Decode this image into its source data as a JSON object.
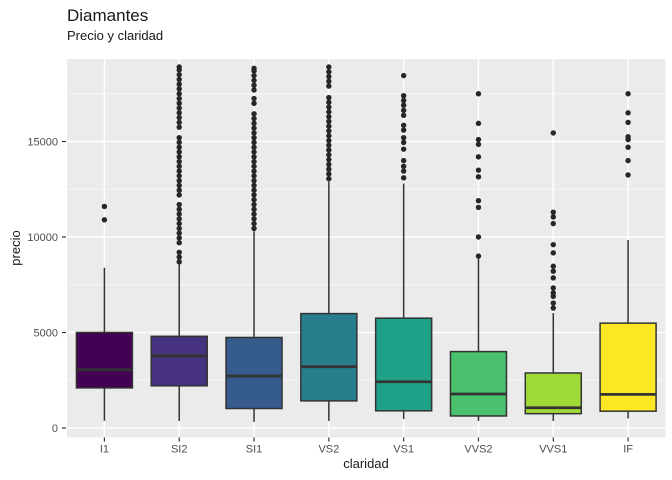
{
  "chart_data": {
    "type": "boxplot",
    "title": "Diamantes",
    "subtitle": "Precio y claridad",
    "xlabel": "claridad",
    "ylabel": "precio",
    "categories": [
      "I1",
      "SI2",
      "SI1",
      "VS2",
      "VS1",
      "VVS2",
      "VVS1",
      "IF"
    ],
    "yticks": [
      0,
      5000,
      10000,
      15000
    ],
    "yticks_minor": [
      2500,
      7500,
      12500,
      17500
    ],
    "ylim": [
      -600,
      19350
    ],
    "grid": true,
    "legend": "none",
    "colors": {
      "panel_bg": "#EBEBEB",
      "grid": "#FFFFFF",
      "box_stroke": "#333333",
      "outlier": "#262626",
      "tick": "#333333",
      "axis_text": "#4D4D4D",
      "title_text": "#181818"
    },
    "series": [
      {
        "label": "I1",
        "color": "#440154",
        "whisker_low": 380,
        "q1": 2100,
        "median": 3050,
        "q3": 5000,
        "whisker_high": 8390,
        "outliers": [
          10900,
          11600
        ]
      },
      {
        "label": "SI2",
        "color": "#46327E",
        "whisker_low": 370,
        "q1": 2210,
        "median": 3780,
        "q3": 4800,
        "whisker_high": 8560,
        "outliers": [
          8700,
          8950,
          9200,
          9700,
          9950,
          10200,
          10450,
          10700,
          10950,
          11200,
          11450,
          11700,
          12200,
          12450,
          12700,
          12950,
          13200,
          13450,
          13700,
          13950,
          14200,
          14450,
          14700,
          14950,
          15200,
          15750,
          16000,
          16250,
          16500,
          16750,
          17000,
          17250,
          17500,
          17750,
          18000,
          18250,
          18500,
          18750,
          18900
        ]
      },
      {
        "label": "SI1",
        "color": "#365C8D",
        "whisker_low": 320,
        "q1": 1020,
        "median": 2720,
        "q3": 4740,
        "whisker_high": 10300,
        "outliers": [
          10450,
          10700,
          10950,
          11200,
          11450,
          11700,
          11950,
          12200,
          12450,
          12700,
          12950,
          13200,
          13450,
          13700,
          13950,
          14200,
          14450,
          14700,
          14950,
          15200,
          15450,
          15700,
          15950,
          16200,
          16450,
          17000,
          17250,
          17700,
          17950,
          18200,
          18450,
          18700,
          18830
        ]
      },
      {
        "label": "VS2",
        "color": "#277F8E",
        "whisker_low": 370,
        "q1": 1420,
        "median": 3210,
        "q3": 5990,
        "whisker_high": 12900,
        "outliers": [
          13050,
          13300,
          13550,
          13800,
          14050,
          14300,
          14550,
          14800,
          15050,
          15300,
          15550,
          15800,
          16050,
          16300,
          16550,
          16800,
          17050,
          17300,
          17900,
          18150,
          18400,
          18650,
          18900
        ]
      },
      {
        "label": "VS1",
        "color": "#1FA187",
        "whisker_low": 470,
        "q1": 900,
        "median": 2420,
        "q3": 5750,
        "whisker_high": 12800,
        "outliers": [
          13100,
          13450,
          13700,
          14000,
          14600,
          14950,
          15200,
          15600,
          15850,
          16370,
          16630,
          16900,
          17150,
          17400,
          18450
        ]
      },
      {
        "label": "VVS2",
        "color": "#4AC16D",
        "whisker_low": 370,
        "q1": 630,
        "median": 1780,
        "q3": 4000,
        "whisker_high": 8950,
        "outliers": [
          9000,
          10000,
          11550,
          11900,
          13150,
          13500,
          14200,
          14850,
          15100,
          15950,
          17500
        ]
      },
      {
        "label": "VVS1",
        "color": "#A0DA39",
        "whisker_low": 370,
        "q1": 750,
        "median": 1060,
        "q3": 2880,
        "whisker_high": 6020,
        "outliers": [
          6280,
          6540,
          6890,
          7070,
          7330,
          7860,
          8210,
          8470,
          9170,
          9600,
          10700,
          11050,
          11300,
          15450
        ]
      },
      {
        "label": "IF",
        "color": "#FDE725",
        "whisker_low": 500,
        "q1": 880,
        "median": 1760,
        "q3": 5490,
        "whisker_high": 9840,
        "outliers": [
          13250,
          14000,
          14700,
          15100,
          15250,
          16000,
          16500,
          17500
        ]
      }
    ]
  }
}
